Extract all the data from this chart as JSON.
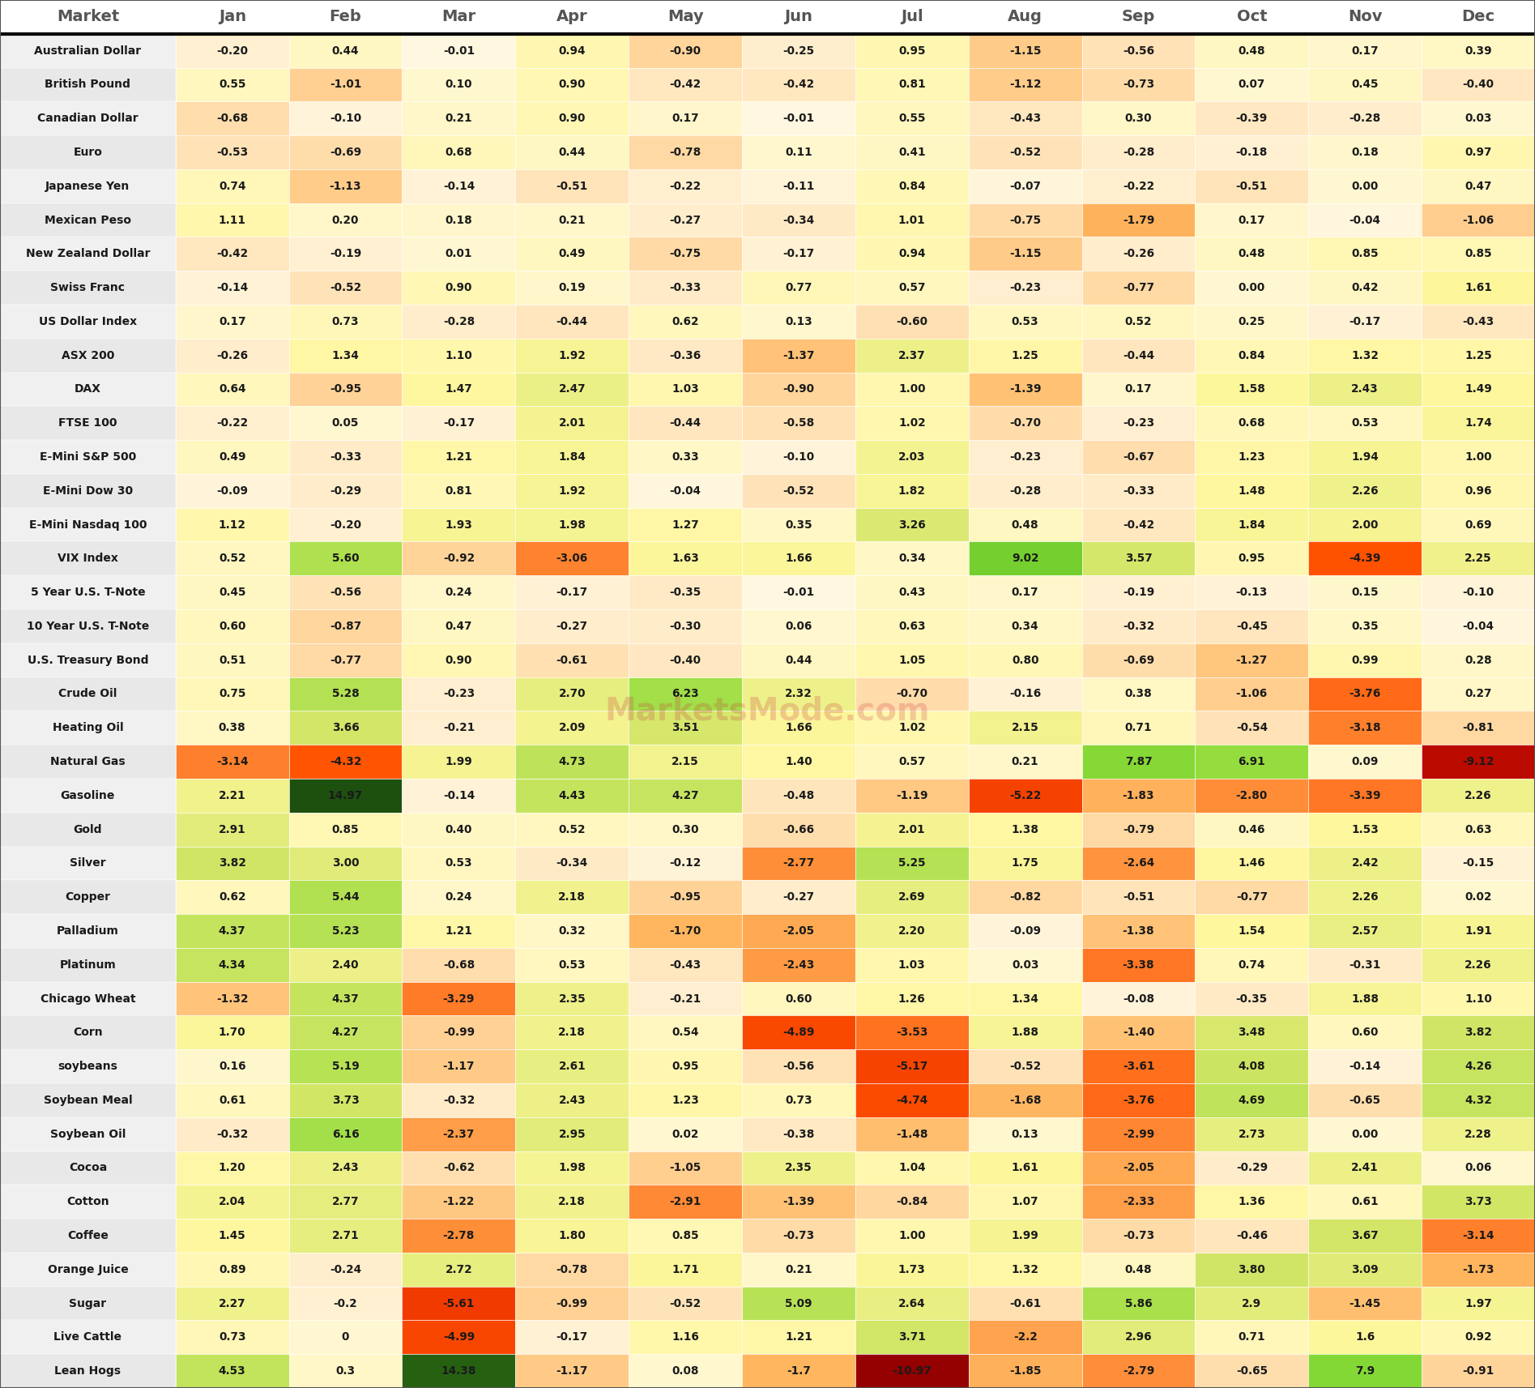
{
  "markets": [
    "Australian Dollar",
    "British Pound",
    "Canadian Dollar",
    "Euro",
    "Japanese Yen",
    "Mexican Peso",
    "New Zealand Dollar",
    "Swiss Franc",
    "US Dollar Index",
    "ASX 200",
    "DAX",
    "FTSE 100",
    "E-Mini S&P 500",
    "E-Mini Dow 30",
    "E-Mini Nasdaq 100",
    "VIX Index",
    "5 Year U.S. T-Note",
    "10 Year U.S. T-Note",
    "U.S. Treasury Bond",
    "Crude Oil",
    "Heating Oil",
    "Natural Gas",
    "Gasoline",
    "Gold",
    "Silver",
    "Copper",
    "Palladium",
    "Platinum",
    "Chicago Wheat",
    "Corn",
    "soybeans",
    "Soybean Meal",
    "Soybean Oil",
    "Cocoa",
    "Cotton",
    "Coffee",
    "Orange Juice",
    "Sugar",
    "Live Cattle",
    "Lean Hogs"
  ],
  "months": [
    "Jan",
    "Feb",
    "Mar",
    "Apr",
    "May",
    "Jun",
    "Jul",
    "Aug",
    "Sep",
    "Oct",
    "Nov",
    "Dec"
  ],
  "data": [
    [
      -0.2,
      0.44,
      -0.01,
      0.94,
      -0.9,
      -0.25,
      0.95,
      -1.15,
      -0.56,
      0.48,
      0.17,
      0.39
    ],
    [
      0.55,
      -1.01,
      0.1,
      0.9,
      -0.42,
      -0.42,
      0.81,
      -1.12,
      -0.73,
      0.07,
      0.45,
      -0.4
    ],
    [
      -0.68,
      -0.1,
      0.21,
      0.9,
      0.17,
      -0.01,
      0.55,
      -0.43,
      0.3,
      -0.39,
      -0.28,
      0.03
    ],
    [
      -0.53,
      -0.69,
      0.68,
      0.44,
      -0.78,
      0.11,
      0.41,
      -0.52,
      -0.28,
      -0.18,
      0.18,
      0.97
    ],
    [
      0.74,
      -1.13,
      -0.14,
      -0.51,
      -0.22,
      -0.11,
      0.84,
      -0.07,
      -0.22,
      -0.51,
      0.0,
      0.47
    ],
    [
      1.11,
      0.2,
      0.18,
      0.21,
      -0.27,
      -0.34,
      1.01,
      -0.75,
      -1.79,
      0.17,
      -0.04,
      -1.06
    ],
    [
      -0.42,
      -0.19,
      0.01,
      0.49,
      -0.75,
      -0.17,
      0.94,
      -1.15,
      -0.26,
      0.48,
      0.85,
      0.85
    ],
    [
      -0.14,
      -0.52,
      0.9,
      0.19,
      -0.33,
      0.77,
      0.57,
      -0.23,
      -0.77,
      0.0,
      0.42,
      1.61
    ],
    [
      0.17,
      0.73,
      -0.28,
      -0.44,
      0.62,
      0.13,
      -0.6,
      0.53,
      0.52,
      0.25,
      -0.17,
      -0.43
    ],
    [
      -0.26,
      1.34,
      1.1,
      1.92,
      -0.36,
      -1.37,
      2.37,
      1.25,
      -0.44,
      0.84,
      1.32,
      1.25
    ],
    [
      0.64,
      -0.95,
      1.47,
      2.47,
      1.03,
      -0.9,
      1.0,
      -1.39,
      0.17,
      1.58,
      2.43,
      1.49
    ],
    [
      -0.22,
      0.05,
      -0.17,
      2.01,
      -0.44,
      -0.58,
      1.02,
      -0.7,
      -0.23,
      0.68,
      0.53,
      1.74
    ],
    [
      0.49,
      -0.33,
      1.21,
      1.84,
      0.33,
      -0.1,
      2.03,
      -0.23,
      -0.67,
      1.23,
      1.94,
      1.0
    ],
    [
      -0.09,
      -0.29,
      0.81,
      1.92,
      -0.04,
      -0.52,
      1.82,
      -0.28,
      -0.33,
      1.48,
      2.26,
      0.96
    ],
    [
      1.12,
      -0.2,
      1.93,
      1.98,
      1.27,
      0.35,
      3.26,
      0.48,
      -0.42,
      1.84,
      2.0,
      0.69
    ],
    [
      0.52,
      5.6,
      -0.92,
      -3.06,
      1.63,
      1.66,
      0.34,
      9.02,
      3.57,
      0.95,
      -4.39,
      2.25
    ],
    [
      0.45,
      -0.56,
      0.24,
      -0.17,
      -0.35,
      -0.01,
      0.43,
      0.17,
      -0.19,
      -0.13,
      0.15,
      -0.1
    ],
    [
      0.6,
      -0.87,
      0.47,
      -0.27,
      -0.3,
      0.06,
      0.63,
      0.34,
      -0.32,
      -0.45,
      0.35,
      -0.04
    ],
    [
      0.51,
      -0.77,
      0.9,
      -0.61,
      -0.4,
      0.44,
      1.05,
      0.8,
      -0.69,
      -1.27,
      0.99,
      0.28
    ],
    [
      0.75,
      5.28,
      -0.23,
      2.7,
      6.23,
      2.32,
      -0.7,
      -0.16,
      0.38,
      -1.06,
      -3.76,
      0.27
    ],
    [
      0.38,
      3.66,
      -0.21,
      2.09,
      3.51,
      1.66,
      1.02,
      2.15,
      0.71,
      -0.54,
      -3.18,
      -0.81
    ],
    [
      -3.14,
      -4.32,
      1.99,
      4.73,
      2.15,
      1.4,
      0.57,
      0.21,
      7.87,
      6.91,
      0.09,
      -9.12
    ],
    [
      2.21,
      14.97,
      -0.14,
      4.43,
      4.27,
      -0.48,
      -1.19,
      -5.22,
      -1.83,
      -2.8,
      -3.39,
      2.26
    ],
    [
      2.91,
      0.85,
      0.4,
      0.52,
      0.3,
      -0.66,
      2.01,
      1.38,
      -0.79,
      0.46,
      1.53,
      0.63
    ],
    [
      3.82,
      3.0,
      0.53,
      -0.34,
      -0.12,
      -2.77,
      5.25,
      1.75,
      -2.64,
      1.46,
      2.42,
      -0.15
    ],
    [
      0.62,
      5.44,
      0.24,
      2.18,
      -0.95,
      -0.27,
      2.69,
      -0.82,
      -0.51,
      -0.77,
      2.26,
      0.02
    ],
    [
      4.37,
      5.23,
      1.21,
      0.32,
      -1.7,
      -2.05,
      2.2,
      -0.09,
      -1.38,
      1.54,
      2.57,
      1.91
    ],
    [
      4.34,
      2.4,
      -0.68,
      0.53,
      -0.43,
      -2.43,
      1.03,
      0.03,
      -3.38,
      0.74,
      -0.31,
      2.26
    ],
    [
      -1.32,
      4.37,
      -3.29,
      2.35,
      -0.21,
      0.6,
      1.26,
      1.34,
      -0.08,
      -0.35,
      1.88,
      1.1
    ],
    [
      1.7,
      4.27,
      -0.99,
      2.18,
      0.54,
      -4.89,
      -3.53,
      1.88,
      -1.4,
      3.48,
      0.6,
      3.82
    ],
    [
      0.16,
      5.19,
      -1.17,
      2.61,
      0.95,
      -0.56,
      -5.17,
      -0.52,
      -3.61,
      4.08,
      -0.14,
      4.26
    ],
    [
      0.61,
      3.73,
      -0.32,
      2.43,
      1.23,
      0.73,
      -4.74,
      -1.68,
      -3.76,
      4.69,
      -0.65,
      4.32
    ],
    [
      -0.32,
      6.16,
      -2.37,
      2.95,
      0.02,
      -0.38,
      -1.48,
      0.13,
      -2.99,
      2.73,
      0.0,
      2.28
    ],
    [
      1.2,
      2.43,
      -0.62,
      1.98,
      -1.05,
      2.35,
      1.04,
      1.61,
      -2.05,
      -0.29,
      2.41,
      0.06
    ],
    [
      2.04,
      2.77,
      -1.22,
      2.18,
      -2.91,
      -1.39,
      -0.84,
      1.07,
      -2.33,
      1.36,
      0.61,
      3.73
    ],
    [
      1.45,
      2.71,
      -2.78,
      1.8,
      0.85,
      -0.73,
      1.0,
      1.99,
      -0.73,
      -0.46,
      3.67,
      -3.14
    ],
    [
      0.89,
      -0.24,
      2.72,
      -0.78,
      1.71,
      0.21,
      1.73,
      1.32,
      0.48,
      3.8,
      3.09,
      -1.73
    ],
    [
      2.27,
      -0.2,
      -5.61,
      -0.99,
      -0.52,
      5.09,
      2.64,
      -0.61,
      5.86,
      2.9,
      -1.45,
      1.97
    ],
    [
      0.73,
      0.0,
      -4.99,
      -0.17,
      1.16,
      1.21,
      3.71,
      -2.2,
      2.96,
      0.71,
      1.6,
      0.92
    ],
    [
      4.53,
      0.3,
      14.38,
      -1.17,
      0.08,
      -1.7,
      -10.97,
      -1.85,
      -2.79,
      -0.65,
      7.9,
      -0.91
    ]
  ],
  "display_values": [
    [
      "-0.20",
      "0.44",
      "-0.01",
      "0.94",
      "-0.90",
      "-0.25",
      "0.95",
      "-1.15",
      "-0.56",
      "0.48",
      "0.17",
      "0.39"
    ],
    [
      "0.55",
      "-1.01",
      "0.10",
      "0.90",
      "-0.42",
      "-0.42",
      "0.81",
      "-1.12",
      "-0.73",
      "0.07",
      "0.45",
      "-0.40"
    ],
    [
      "-0.68",
      "-0.10",
      "0.21",
      "0.90",
      "0.17",
      "-0.01",
      "0.55",
      "-0.43",
      "0.30",
      "-0.39",
      "-0.28",
      "0.03"
    ],
    [
      "-0.53",
      "-0.69",
      "0.68",
      "0.44",
      "-0.78",
      "0.11",
      "0.41",
      "-0.52",
      "-0.28",
      "-0.18",
      "0.18",
      "0.97"
    ],
    [
      "0.74",
      "-1.13",
      "-0.14",
      "-0.51",
      "-0.22",
      "-0.11",
      "0.84",
      "-0.07",
      "-0.22",
      "-0.51",
      "0.00",
      "0.47"
    ],
    [
      "1.11",
      "0.20",
      "0.18",
      "0.21",
      "-0.27",
      "-0.34",
      "1.01",
      "-0.75",
      "-1.79",
      "0.17",
      "-0.04",
      "-1.06"
    ],
    [
      "-0.42",
      "-0.19",
      "0.01",
      "0.49",
      "-0.75",
      "-0.17",
      "0.94",
      "-1.15",
      "-0.26",
      "0.48",
      "0.85",
      "0.85"
    ],
    [
      "-0.14",
      "-0.52",
      "0.90",
      "0.19",
      "-0.33",
      "0.77",
      "0.57",
      "-0.23",
      "-0.77",
      "0.00",
      "0.42",
      "1.61"
    ],
    [
      "0.17",
      "0.73",
      "-0.28",
      "-0.44",
      "0.62",
      "0.13",
      "-0.60",
      "0.53",
      "0.52",
      "0.25",
      "-0.17",
      "-0.43"
    ],
    [
      "-0.26",
      "1.34",
      "1.10",
      "1.92",
      "-0.36",
      "-1.37",
      "2.37",
      "1.25",
      "-0.44",
      "0.84",
      "1.32",
      "1.25"
    ],
    [
      "0.64",
      "-0.95",
      "1.47",
      "2.47",
      "1.03",
      "-0.90",
      "1.00",
      "-1.39",
      "0.17",
      "1.58",
      "2.43",
      "1.49"
    ],
    [
      "-0.22",
      "0.05",
      "-0.17",
      "2.01",
      "-0.44",
      "-0.58",
      "1.02",
      "-0.70",
      "-0.23",
      "0.68",
      "0.53",
      "1.74"
    ],
    [
      "0.49",
      "-0.33",
      "1.21",
      "1.84",
      "0.33",
      "-0.10",
      "2.03",
      "-0.23",
      "-0.67",
      "1.23",
      "1.94",
      "1.00"
    ],
    [
      "-0.09",
      "-0.29",
      "0.81",
      "1.92",
      "-0.04",
      "-0.52",
      "1.82",
      "-0.28",
      "-0.33",
      "1.48",
      "2.26",
      "0.96"
    ],
    [
      "1.12",
      "-0.20",
      "1.93",
      "1.98",
      "1.27",
      "0.35",
      "3.26",
      "0.48",
      "-0.42",
      "1.84",
      "2.00",
      "0.69"
    ],
    [
      "0.52",
      "5.60",
      "-0.92",
      "-3.06",
      "1.63",
      "1.66",
      "0.34",
      "9.02",
      "3.57",
      "0.95",
      "-4.39",
      "2.25"
    ],
    [
      "0.45",
      "-0.56",
      "0.24",
      "-0.17",
      "-0.35",
      "-0.01",
      "0.43",
      "0.17",
      "-0.19",
      "-0.13",
      "0.15",
      "-0.10"
    ],
    [
      "0.60",
      "-0.87",
      "0.47",
      "-0.27",
      "-0.30",
      "0.06",
      "0.63",
      "0.34",
      "-0.32",
      "-0.45",
      "0.35",
      "-0.04"
    ],
    [
      "0.51",
      "-0.77",
      "0.90",
      "-0.61",
      "-0.40",
      "0.44",
      "1.05",
      "0.80",
      "-0.69",
      "-1.27",
      "0.99",
      "0.28"
    ],
    [
      "0.75",
      "5.28",
      "-0.23",
      "2.70",
      "6.23",
      "2.32",
      "-0.70",
      "-0.16",
      "0.38",
      "-1.06",
      "-3.76",
      "0.27"
    ],
    [
      "0.38",
      "3.66",
      "-0.21",
      "2.09",
      "3.51",
      "1.66",
      "1.02",
      "2.15",
      "0.71",
      "-0.54",
      "-3.18",
      "-0.81"
    ],
    [
      "-3.14",
      "-4.32",
      "1.99",
      "4.73",
      "2.15",
      "1.40",
      "0.57",
      "0.21",
      "7.87",
      "6.91",
      "0.09",
      "-9.12"
    ],
    [
      "2.21",
      "14.97",
      "-0.14",
      "4.43",
      "4.27",
      "-0.48",
      "-1.19",
      "-5.22",
      "-1.83",
      "-2.80",
      "-3.39",
      "2.26"
    ],
    [
      "2.91",
      "0.85",
      "0.40",
      "0.52",
      "0.30",
      "-0.66",
      "2.01",
      "1.38",
      "-0.79",
      "0.46",
      "1.53",
      "0.63"
    ],
    [
      "3.82",
      "3.00",
      "0.53",
      "-0.34",
      "-0.12",
      "-2.77",
      "5.25",
      "1.75",
      "-2.64",
      "1.46",
      "2.42",
      "-0.15"
    ],
    [
      "0.62",
      "5.44",
      "0.24",
      "2.18",
      "-0.95",
      "-0.27",
      "2.69",
      "-0.82",
      "-0.51",
      "-0.77",
      "2.26",
      "0.02"
    ],
    [
      "4.37",
      "5.23",
      "1.21",
      "0.32",
      "-1.70",
      "-2.05",
      "2.20",
      "-0.09",
      "-1.38",
      "1.54",
      "2.57",
      "1.91"
    ],
    [
      "4.34",
      "2.40",
      "-0.68",
      "0.53",
      "-0.43",
      "-2.43",
      "1.03",
      "0.03",
      "-3.38",
      "0.74",
      "-0.31",
      "2.26"
    ],
    [
      "-1.32",
      "4.37",
      "-3.29",
      "2.35",
      "-0.21",
      "0.60",
      "1.26",
      "1.34",
      "-0.08",
      "-0.35",
      "1.88",
      "1.10"
    ],
    [
      "1.70",
      "4.27",
      "-0.99",
      "2.18",
      "0.54",
      "-4.89",
      "-3.53",
      "1.88",
      "-1.40",
      "3.48",
      "0.60",
      "3.82"
    ],
    [
      "0.16",
      "5.19",
      "-1.17",
      "2.61",
      "0.95",
      "-0.56",
      "-5.17",
      "-0.52",
      "-3.61",
      "4.08",
      "-0.14",
      "4.26"
    ],
    [
      "0.61",
      "3.73",
      "-0.32",
      "2.43",
      "1.23",
      "0.73",
      "-4.74",
      "-1.68",
      "-3.76",
      "4.69",
      "-0.65",
      "4.32"
    ],
    [
      "-0.32",
      "6.16",
      "-2.37",
      "2.95",
      "0.02",
      "-0.38",
      "-1.48",
      "0.13",
      "-2.99",
      "2.73",
      "0.00",
      "2.28"
    ],
    [
      "1.20",
      "2.43",
      "-0.62",
      "1.98",
      "-1.05",
      "2.35",
      "1.04",
      "1.61",
      "-2.05",
      "-0.29",
      "2.41",
      "0.06"
    ],
    [
      "2.04",
      "2.77",
      "-1.22",
      "2.18",
      "-2.91",
      "-1.39",
      "-0.84",
      "1.07",
      "-2.33",
      "1.36",
      "0.61",
      "3.73"
    ],
    [
      "1.45",
      "2.71",
      "-2.78",
      "1.80",
      "0.85",
      "-0.73",
      "1.00",
      "1.99",
      "-0.73",
      "-0.46",
      "3.67",
      "-3.14"
    ],
    [
      "0.89",
      "-0.24",
      "2.72",
      "-0.78",
      "1.71",
      "0.21",
      "1.73",
      "1.32",
      "0.48",
      "3.80",
      "3.09",
      "-1.73"
    ],
    [
      "2.27",
      "-0.2",
      "-5.61",
      "-0.99",
      "-0.52",
      "5.09",
      "2.64",
      "-0.61",
      "5.86",
      "2.9",
      "-1.45",
      "1.97"
    ],
    [
      "0.73",
      "0",
      "-4.99",
      "-0.17",
      "1.16",
      "1.21",
      "3.71",
      "-2.2",
      "2.96",
      "0.71",
      "1.6",
      "0.92"
    ],
    [
      "4.53",
      "0.3",
      "14.38",
      "-1.17",
      "0.08",
      "-1.7",
      "-10.97",
      "-1.85",
      "-2.79",
      "-0.65",
      "7.9",
      "-0.91"
    ]
  ],
  "watermark_text": "MarketsMode.com"
}
